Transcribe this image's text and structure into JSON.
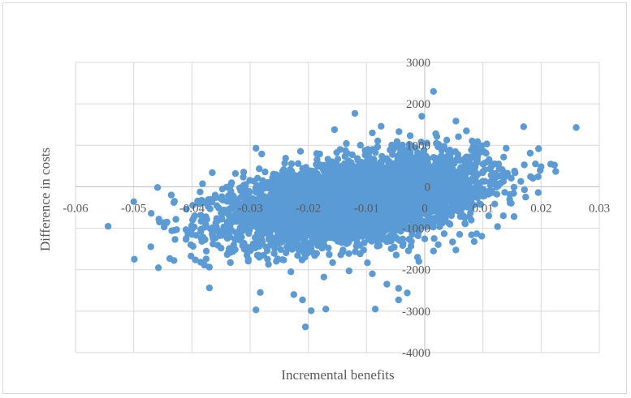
{
  "chart_data": {
    "type": "scatter",
    "title": "",
    "xlabel": "Incremental benefits",
    "ylabel": "Difference in  costs",
    "xlim": [
      -0.06,
      0.03
    ],
    "ylim": [
      -4000,
      3000
    ],
    "xticks": [
      -0.06,
      -0.05,
      -0.04,
      -0.03,
      -0.02,
      -0.01,
      0,
      0.01,
      0.02,
      0.03
    ],
    "xtick_labels": [
      "-0.06",
      "-0.05",
      "-0.04",
      "-0.03",
      "-0.02",
      "-0.01",
      "0",
      "0.01",
      "0.02",
      "0.03"
    ],
    "yticks": [
      3000,
      2000,
      1000,
      0,
      -1000,
      -2000,
      -3000,
      -4000
    ],
    "ytick_labels": [
      "3000",
      "2000",
      "1000",
      "0",
      "-1000",
      "-2000",
      "-3000",
      "-4000"
    ],
    "grid": true,
    "legend": "none",
    "marker_color": "#5b9bd5",
    "cloud": {
      "n": 5000,
      "center": [
        -0.012,
        -320
      ],
      "sd": [
        0.0105,
        500
      ],
      "correlation": 0.42
    },
    "points": [
      [
        0.0015,
        2300
      ],
      [
        -0.0005,
        1700
      ],
      [
        0.017,
        1450
      ],
      [
        -0.012,
        1770
      ],
      [
        -0.0075,
        1460
      ],
      [
        -0.029,
        930
      ],
      [
        0.0225,
        370
      ],
      [
        0.014,
        930
      ],
      [
        -0.05,
        -360
      ],
      [
        -0.047,
        -640
      ],
      [
        -0.043,
        -350
      ],
      [
        -0.0365,
        340
      ],
      [
        -0.043,
        -1050
      ],
      [
        -0.037,
        -2440
      ],
      [
        -0.029,
        -2970
      ],
      [
        -0.0195,
        -2990
      ],
      [
        -0.0205,
        -3380
      ],
      [
        -0.017,
        -2950
      ],
      [
        -0.0085,
        -2950
      ],
      [
        -0.0045,
        -2730
      ],
      [
        -0.003,
        -2560
      ],
      [
        -0.0225,
        -2600
      ],
      [
        -0.021,
        -2730
      ],
      [
        -0.0065,
        -2350
      ],
      [
        -0.0045,
        -2450
      ],
      [
        0.0195,
        -140
      ],
      [
        0.0135,
        -700
      ],
      [
        0.0085,
        -1320
      ],
      [
        0.006,
        -1150
      ],
      [
        0.0015,
        -1550
      ],
      [
        -0.04,
        -1150
      ],
      [
        -0.0385,
        -1820
      ],
      [
        -0.035,
        -1480
      ],
      [
        -0.023,
        -2050
      ],
      [
        -0.013,
        -2030
      ],
      [
        0.011,
        -700
      ],
      [
        0.0165,
        130
      ],
      [
        0.0135,
        130
      ],
      [
        0.01,
        550
      ],
      [
        -0.0155,
        1380
      ],
      [
        -0.009,
        1300
      ],
      [
        -0.0025,
        1230
      ],
      [
        0.002,
        1050
      ],
      [
        0.004,
        870
      ],
      [
        -0.028,
        790
      ],
      [
        -0.041,
        -1250
      ],
      [
        -0.0395,
        -700
      ],
      [
        -0.031,
        -1500
      ],
      [
        -0.027,
        -1750
      ],
      [
        -0.009,
        -2100
      ],
      [
        -0.001,
        -1800
      ]
    ]
  }
}
